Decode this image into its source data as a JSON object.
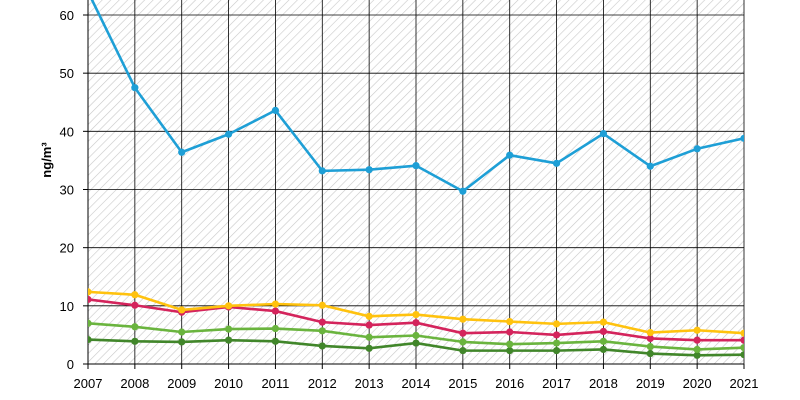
{
  "chart_data": {
    "type": "line",
    "title": "",
    "xlabel": "",
    "ylabel": "ng/m³",
    "x": [
      2007,
      2008,
      2009,
      2010,
      2011,
      2012,
      2013,
      2014,
      2015,
      2016,
      2017,
      2018,
      2019,
      2020,
      2021
    ],
    "ylim": [
      0,
      60
    ],
    "yticks": [
      0,
      10,
      20,
      30,
      40,
      50,
      60
    ],
    "grid": true,
    "legend": "none",
    "series": [
      {
        "color": "#1e9fd6",
        "values": [
          64.0,
          47.5,
          36.4,
          39.5,
          43.6,
          33.2,
          33.4,
          34.1,
          29.7,
          35.9,
          34.5,
          39.6,
          34.0,
          37.0,
          38.8
        ]
      },
      {
        "color": "#ffc20e",
        "values": [
          12.4,
          11.9,
          9.3,
          10.0,
          10.3,
          10.1,
          8.2,
          8.5,
          7.7,
          7.3,
          6.9,
          7.2,
          5.4,
          5.8,
          5.3
        ]
      },
      {
        "color": "#d4245c",
        "values": [
          11.1,
          10.1,
          8.9,
          9.8,
          9.1,
          7.2,
          6.7,
          7.1,
          5.3,
          5.5,
          5.0,
          5.6,
          4.4,
          4.1,
          4.1
        ]
      },
      {
        "color": "#6ab43e",
        "values": [
          7.0,
          6.4,
          5.5,
          6.0,
          6.1,
          5.7,
          4.6,
          4.9,
          3.8,
          3.4,
          3.6,
          3.9,
          3.0,
          2.5,
          2.8
        ]
      },
      {
        "color": "#41862a",
        "values": [
          4.2,
          3.9,
          3.8,
          4.1,
          3.9,
          3.1,
          2.7,
          3.6,
          2.3,
          2.3,
          2.3,
          2.5,
          1.8,
          1.5,
          1.6
        ]
      }
    ]
  }
}
